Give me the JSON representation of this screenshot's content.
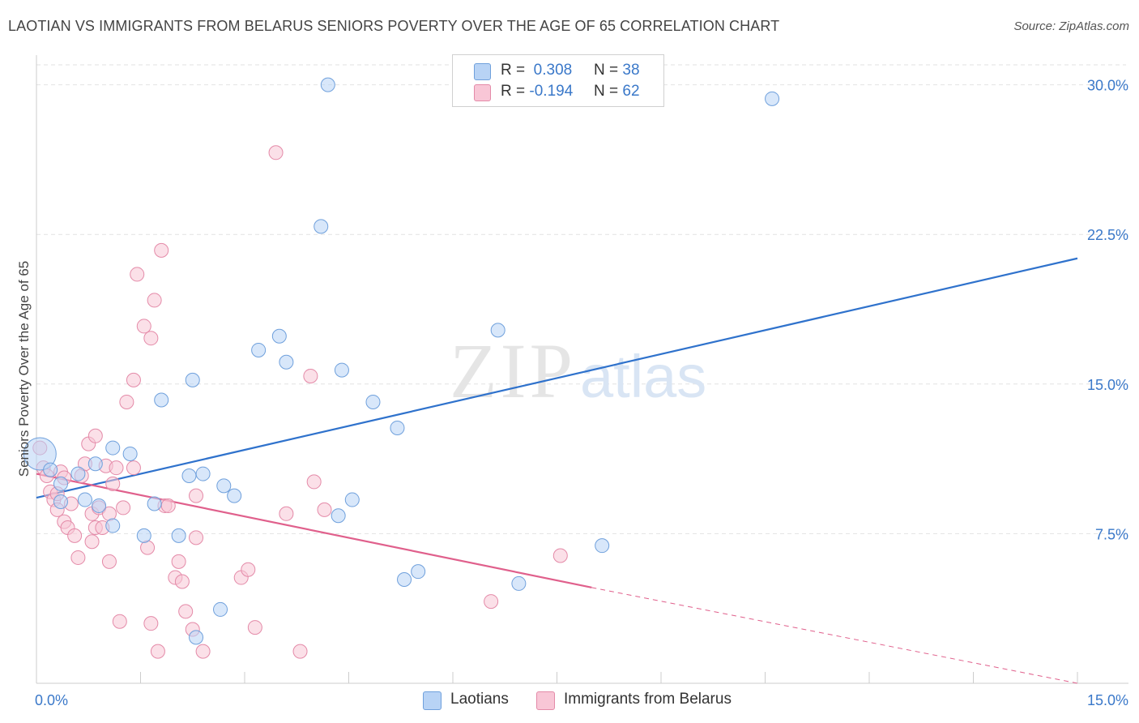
{
  "header": {
    "title": "LAOTIAN VS IMMIGRANTS FROM BELARUS SENIORS POVERTY OVER THE AGE OF 65 CORRELATION CHART",
    "source": "Source: ZipAtlas.com"
  },
  "legend": {
    "rows": [
      {
        "r_label": "R =",
        "r_value": "0.308",
        "n_label": "N =",
        "n_value": "38"
      },
      {
        "r_label": "R =",
        "r_value": "-0.194",
        "n_label": "N =",
        "n_value": "62"
      }
    ]
  },
  "watermark": {
    "zip": "ZIP",
    "atlas": "atlas"
  },
  "colors": {
    "blue_fill": "#b8d3f5",
    "blue_stroke": "#6fa0dc",
    "blue_line": "#2f72cc",
    "pink_fill": "#f8c6d6",
    "pink_stroke": "#e48aa8",
    "pink_line": "#e0608c",
    "tick_text": "#3a78c9",
    "grid": "#e2e2e2"
  },
  "chart_data": {
    "type": "scatter",
    "title": "LAOTIAN VS IMMIGRANTS FROM BELARUS SENIORS POVERTY OVER THE AGE OF 65 CORRELATION CHART",
    "xlabel": "",
    "ylabel": "Seniors Poverty Over the Age of 65",
    "xlim": [
      0,
      15
    ],
    "ylim": [
      0,
      31
    ],
    "x_tick_labels": [
      "0.0%",
      "15.0%"
    ],
    "y_ticks": [
      7.5,
      15.0,
      22.5,
      30.0
    ],
    "y_tick_labels": [
      "7.5%",
      "15.0%",
      "22.5%",
      "30.0%"
    ],
    "grid": true,
    "legend_position": "top-center",
    "series": [
      {
        "name": "Laotians",
        "color": "#b8d3f5",
        "r": 0.308,
        "n": 38,
        "trend": {
          "x0": 0,
          "y0": 9.3,
          "x1": 15.0,
          "y1": 21.3
        },
        "points": [
          [
            0.05,
            11.5
          ],
          [
            0.2,
            10.7
          ],
          [
            0.35,
            10.0
          ],
          [
            0.35,
            9.1
          ],
          [
            0.6,
            10.5
          ],
          [
            0.85,
            11.0
          ],
          [
            0.7,
            9.2
          ],
          [
            0.9,
            8.9
          ],
          [
            1.1,
            11.8
          ],
          [
            1.35,
            11.5
          ],
          [
            1.1,
            7.9
          ],
          [
            1.7,
            9.0
          ],
          [
            1.55,
            7.4
          ],
          [
            1.8,
            14.2
          ],
          [
            2.25,
            15.2
          ],
          [
            2.2,
            10.4
          ],
          [
            2.05,
            7.4
          ],
          [
            2.4,
            10.5
          ],
          [
            2.7,
            9.9
          ],
          [
            2.85,
            9.4
          ],
          [
            2.65,
            3.7
          ],
          [
            2.3,
            2.3
          ],
          [
            3.2,
            16.7
          ],
          [
            3.5,
            17.4
          ],
          [
            3.6,
            16.1
          ],
          [
            4.1,
            22.9
          ],
          [
            4.4,
            15.7
          ],
          [
            4.35,
            8.4
          ],
          [
            4.55,
            9.2
          ],
          [
            4.85,
            14.1
          ],
          [
            5.2,
            12.8
          ],
          [
            4.2,
            30.0
          ],
          [
            5.5,
            5.6
          ],
          [
            5.3,
            5.2
          ],
          [
            6.65,
            17.7
          ],
          [
            6.95,
            5.0
          ],
          [
            8.15,
            6.9
          ],
          [
            10.6,
            29.3
          ]
        ]
      },
      {
        "name": "Immigrants from Belarus",
        "color": "#f8c6d6",
        "r": -0.194,
        "n": 62,
        "trend": {
          "x0": 0,
          "y0": 10.5,
          "x1": 8.0,
          "y1": 4.8
        },
        "trend_dashed_to": {
          "x": 15.0,
          "y": 0.0
        },
        "points": [
          [
            0.05,
            11.8
          ],
          [
            0.1,
            10.8
          ],
          [
            0.15,
            10.4
          ],
          [
            0.2,
            9.6
          ],
          [
            0.25,
            9.2
          ],
          [
            0.3,
            9.5
          ],
          [
            0.3,
            8.7
          ],
          [
            0.35,
            10.6
          ],
          [
            0.4,
            10.3
          ],
          [
            0.4,
            8.1
          ],
          [
            0.45,
            7.8
          ],
          [
            0.5,
            9.0
          ],
          [
            0.55,
            7.4
          ],
          [
            0.6,
            6.3
          ],
          [
            0.65,
            10.4
          ],
          [
            0.7,
            11.0
          ],
          [
            0.75,
            12.0
          ],
          [
            0.8,
            8.5
          ],
          [
            0.8,
            7.1
          ],
          [
            0.85,
            12.4
          ],
          [
            0.85,
            7.8
          ],
          [
            0.9,
            8.8
          ],
          [
            0.95,
            7.8
          ],
          [
            1.0,
            10.9
          ],
          [
            1.05,
            8.5
          ],
          [
            1.05,
            6.1
          ],
          [
            1.1,
            10.0
          ],
          [
            1.15,
            10.8
          ],
          [
            1.2,
            3.1
          ],
          [
            1.25,
            8.8
          ],
          [
            1.3,
            14.1
          ],
          [
            1.4,
            15.2
          ],
          [
            1.45,
            20.5
          ],
          [
            1.4,
            10.8
          ],
          [
            1.55,
            17.9
          ],
          [
            1.6,
            6.8
          ],
          [
            1.65,
            3.0
          ],
          [
            1.65,
            17.3
          ],
          [
            1.7,
            19.2
          ],
          [
            1.75,
            1.6
          ],
          [
            1.8,
            21.7
          ],
          [
            1.85,
            8.9
          ],
          [
            1.9,
            8.9
          ],
          [
            2.0,
            5.3
          ],
          [
            2.05,
            6.1
          ],
          [
            2.1,
            5.1
          ],
          [
            2.15,
            3.6
          ],
          [
            2.25,
            2.7
          ],
          [
            2.3,
            7.3
          ],
          [
            2.3,
            9.4
          ],
          [
            2.4,
            1.6
          ],
          [
            2.95,
            5.3
          ],
          [
            3.05,
            5.7
          ],
          [
            3.15,
            2.8
          ],
          [
            3.45,
            26.6
          ],
          [
            3.6,
            8.5
          ],
          [
            3.8,
            1.6
          ],
          [
            3.95,
            15.4
          ],
          [
            4.0,
            10.1
          ],
          [
            4.15,
            8.7
          ],
          [
            6.55,
            4.1
          ],
          [
            7.55,
            6.4
          ]
        ]
      }
    ]
  },
  "bottom_legend": [
    {
      "label": "Laotians"
    },
    {
      "label": "Immigrants from Belarus"
    }
  ]
}
